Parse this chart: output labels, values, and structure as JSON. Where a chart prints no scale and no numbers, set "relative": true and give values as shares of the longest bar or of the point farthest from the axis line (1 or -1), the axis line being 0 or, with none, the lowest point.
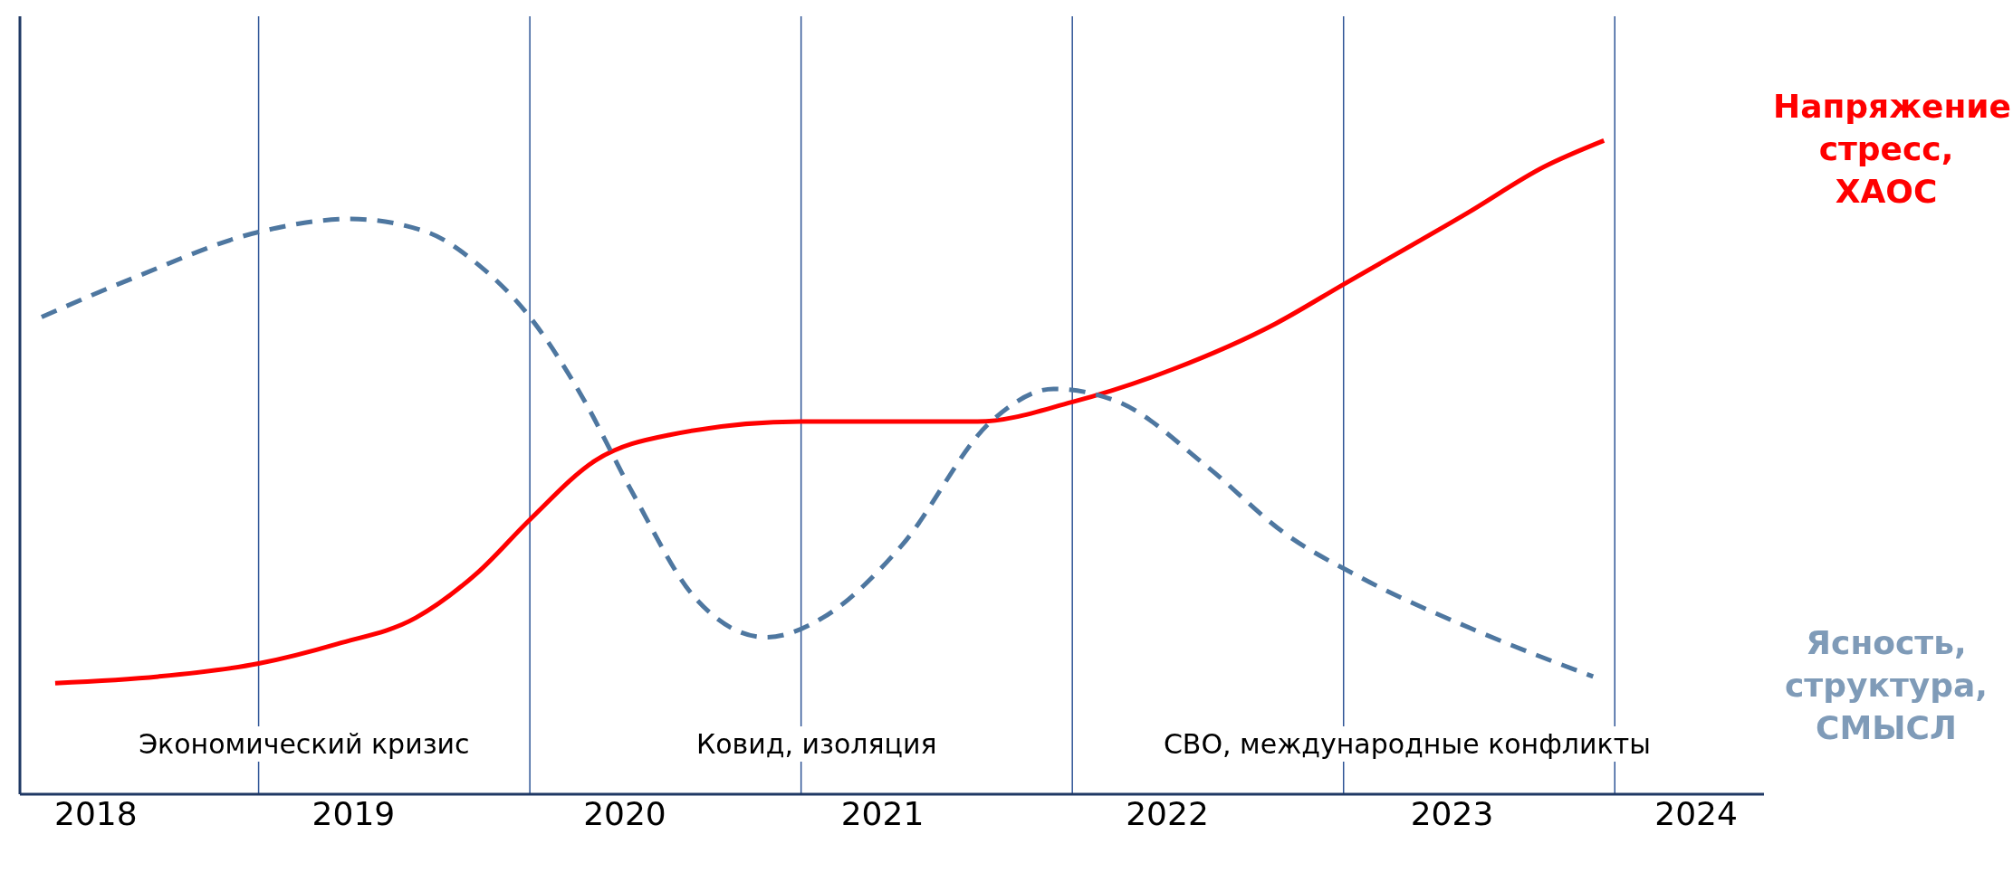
{
  "chart_data": {
    "type": "line",
    "relative": true,
    "grid": false,
    "legend": false,
    "marker": "none",
    "xlim": [
      2018.12,
      2024.55
    ],
    "xticks": [
      {
        "value": 2018.4,
        "label": "2018"
      },
      {
        "value": 2019.35,
        "label": "2019"
      },
      {
        "value": 2020.35,
        "label": "2020"
      },
      {
        "value": 2021.3,
        "label": "2021"
      },
      {
        "value": 2022.35,
        "label": "2022"
      },
      {
        "value": 2023.4,
        "label": "2023"
      },
      {
        "value": 2024.3,
        "label": "2024"
      }
    ],
    "series": [
      {
        "name": "Напряжение, стресс, ХАОС",
        "color": "#ff0000",
        "line_style": "solid",
        "x": [
          2018.25,
          2018.63,
          2019,
          2019.29,
          2019.58,
          2019.81,
          2020,
          2020.24,
          2020.52,
          2021,
          2021.65,
          2022,
          2022.37,
          2022.75,
          2023,
          2023.46,
          2023.74,
          2023.96
        ],
        "values": [
          0.17,
          0.18,
          0.2,
          0.23,
          0.27,
          0.34,
          0.42,
          0.51,
          0.55,
          0.57,
          0.57,
          0.6,
          0.65,
          0.72,
          0.78,
          0.89,
          0.96,
          1
        ]
      },
      {
        "name": "Ясность, структура, СМЫСЛ",
        "color": "#4e77a0",
        "line_style": "dashed",
        "x": [
          2018.2,
          2018.54,
          2019,
          2019.34,
          2019.62,
          2019.81,
          2020,
          2020.19,
          2020.38,
          2020.61,
          2020.87,
          2021.08,
          2021.37,
          2021.7,
          2021.93,
          2022.17,
          2022.5,
          2022.78,
          2023.07,
          2023.49,
          2023.92
        ],
        "values": [
          0.73,
          0.79,
          0.86,
          0.88,
          0.86,
          0.81,
          0.73,
          0.61,
          0.46,
          0.3,
          0.24,
          0.27,
          0.38,
          0.57,
          0.62,
          0.6,
          0.5,
          0.4,
          0.33,
          0.25,
          0.18
        ]
      }
    ],
    "ref_lines": [
      {
        "axis": "x",
        "value": 2019,
        "color": "#2f5597"
      },
      {
        "axis": "x",
        "value": 2020,
        "color": "#2f5597"
      },
      {
        "axis": "x",
        "value": 2021,
        "color": "#2f5597"
      },
      {
        "axis": "x",
        "value": 2022,
        "color": "#2f5597"
      },
      {
        "axis": "x",
        "value": 2023,
        "color": "#2f5597"
      },
      {
        "axis": "x",
        "value": 2024,
        "color": "#2f5597"
      }
    ],
    "annotations": [
      "Экономический кризис",
      "Ковид, изоляция",
      "СВО, международные конфликты"
    ]
  }
}
